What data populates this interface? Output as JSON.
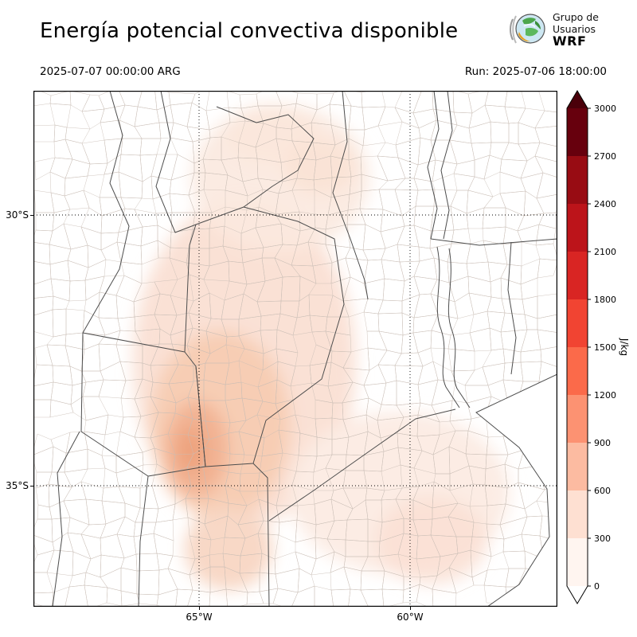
{
  "header": {
    "title": "Energía potencial convectiva disponible",
    "valid_time": "2025-07-07 00:00:00 ARG",
    "run_label": "Run: 2025-07-06 18:00:00",
    "logo": {
      "line1": "Grupo de",
      "line2": "Usuarios",
      "line3": "WRF"
    }
  },
  "map": {
    "y_ticks": [
      "30°S",
      "35°S"
    ],
    "x_ticks": [
      "65°W",
      "60°W"
    ]
  },
  "colorbar": {
    "unit": "J/kg",
    "ticks": [
      "0",
      "300",
      "600",
      "900",
      "1200",
      "1500",
      "1800",
      "2100",
      "2400",
      "2700",
      "3000"
    ],
    "colors": [
      "#fff5f0",
      "#fee0d2",
      "#fcbba1",
      "#fc9272",
      "#fb6a4a",
      "#f14432",
      "#d92523",
      "#bc141a",
      "#980c13",
      "#67000d"
    ],
    "over_color": "#4a000a",
    "under_color": "#ffffff"
  }
}
